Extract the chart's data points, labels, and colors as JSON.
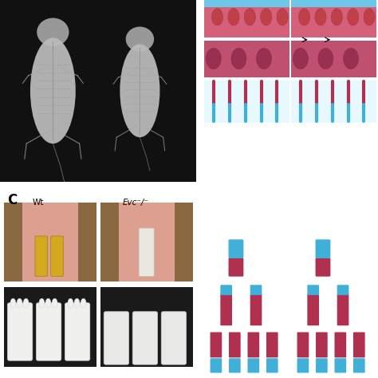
{
  "background_color": "#ffffff",
  "label_C": "C",
  "label_Wt": "Wt",
  "label_Evc": "Evc⁻/⁻",
  "label_fontsize": 9,
  "xray_bg": "#111111",
  "stain_bg": "#ffffff"
}
